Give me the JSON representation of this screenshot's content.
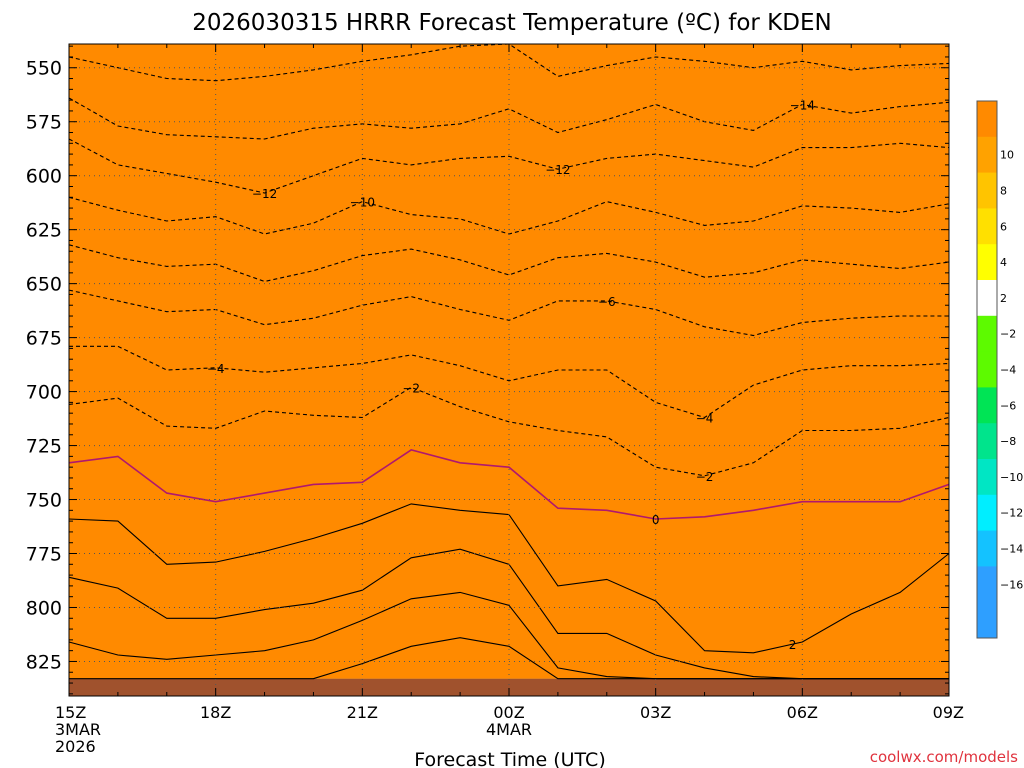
{
  "chart_data": {
    "type": "contour",
    "title": "2026030315 HRRR Forecast Temperature (ºC) for KDEN",
    "xlabel": "Forecast Time (UTC)",
    "ylabel": "",
    "credit": "coolwx.com/models",
    "x_range": [
      "2026-03-03 15Z",
      "2026-03-04 09Z"
    ],
    "x_ticks": [
      {
        "hour": 0,
        "lines": [
          "15Z",
          "3MAR",
          "2026"
        ]
      },
      {
        "hour": 3,
        "lines": [
          "18Z"
        ]
      },
      {
        "hour": 6,
        "lines": [
          "21Z"
        ]
      },
      {
        "hour": 9,
        "lines": [
          "00Z",
          "4MAR"
        ]
      },
      {
        "hour": 12,
        "lines": [
          "03Z"
        ]
      },
      {
        "hour": 15,
        "lines": [
          "06Z"
        ]
      },
      {
        "hour": 18,
        "lines": [
          "09Z"
        ]
      }
    ],
    "y_axis": {
      "title": "",
      "range": [
        841,
        539
      ],
      "ticks": [
        550,
        575,
        600,
        625,
        650,
        675,
        700,
        725,
        750,
        775,
        800,
        825
      ]
    },
    "grid": true,
    "hours": [
      0,
      1,
      2,
      3,
      4,
      5,
      6,
      7,
      8,
      9,
      10,
      11,
      12,
      13,
      14,
      15,
      16,
      17,
      18
    ],
    "ground_pressure": 833,
    "contours": [
      {
        "level": -16,
        "style": "dashed",
        "color": "#000000",
        "label": "",
        "label_hour": null,
        "p": [
          545,
          550,
          555,
          556,
          554,
          551,
          547,
          544,
          540,
          539,
          554,
          549,
          545,
          547,
          550,
          547,
          551,
          549,
          548
        ]
      },
      {
        "level": -14,
        "style": "dashed",
        "color": "#000000",
        "label": "−14",
        "label_hour": 15,
        "p": [
          564,
          577,
          581,
          582,
          583,
          578,
          576,
          578,
          576,
          569,
          580,
          574,
          567,
          575,
          579,
          567,
          571,
          568,
          566
        ]
      },
      {
        "level": -12,
        "style": "dashed",
        "color": "#000000",
        "label": "−12",
        "label_hour": 4,
        "label_hour_2": 10,
        "p": [
          583,
          595,
          599,
          603,
          608,
          600,
          592,
          595,
          592,
          591,
          597,
          592,
          590,
          593,
          596,
          587,
          587,
          585,
          587
        ]
      },
      {
        "level": -10,
        "style": "dashed",
        "color": "#000000",
        "label": "−10",
        "label_hour": 6,
        "p": [
          610,
          616,
          621,
          619,
          627,
          622,
          612,
          618,
          620,
          627,
          621,
          612,
          617,
          623,
          621,
          614,
          615,
          617,
          613
        ]
      },
      {
        "level": -8,
        "style": "dashed",
        "color": "#000000",
        "label": "",
        "label_hour": null,
        "p": [
          632,
          638,
          642,
          641,
          649,
          644,
          637,
          634,
          639,
          646,
          638,
          636,
          640,
          647,
          645,
          639,
          641,
          643,
          640
        ]
      },
      {
        "level": -6,
        "style": "dashed",
        "color": "#000000",
        "label": "−6",
        "label_hour": 11,
        "p": [
          653,
          658,
          663,
          662,
          669,
          666,
          660,
          656,
          662,
          667,
          658,
          658,
          662,
          670,
          674,
          668,
          666,
          665,
          665
        ]
      },
      {
        "level": -4,
        "style": "dashed",
        "color": "#000000",
        "label": "−4",
        "label_hour": 3,
        "label_hour_2": 13,
        "p": [
          679,
          679,
          690,
          689,
          691,
          689,
          687,
          683,
          688,
          695,
          690,
          690,
          705,
          712,
          697,
          690,
          688,
          688,
          687
        ]
      },
      {
        "level": -2,
        "style": "dashed",
        "color": "#000000",
        "label": "−2",
        "label_hour": 7,
        "label_hour_2": 13,
        "p": [
          706,
          703,
          716,
          717,
          709,
          711,
          712,
          698,
          707,
          714,
          718,
          721,
          735,
          739,
          733,
          718,
          718,
          717,
          712
        ]
      },
      {
        "level": 0,
        "style": "solid",
        "color": "#b0186e",
        "label": "0",
        "label_hour": 12,
        "p": [
          733,
          730,
          747,
          751,
          747,
          743,
          742,
          727,
          733,
          735,
          754,
          755,
          759,
          758,
          755,
          751,
          751,
          751,
          743
        ]
      },
      {
        "level": 2,
        "style": "solid",
        "color": "#000000",
        "label": "2",
        "label_hour": 14.8,
        "p": [
          759,
          760,
          780,
          779,
          774,
          768,
          761,
          752,
          755,
          757,
          790,
          787,
          797,
          820,
          821,
          816,
          803,
          793,
          775
        ]
      },
      {
        "level": 4,
        "style": "solid",
        "color": "#000000",
        "label": "",
        "label_hour": null,
        "p": [
          786,
          791,
          805,
          805,
          801,
          798,
          792,
          777,
          773,
          780,
          812,
          812,
          822,
          828,
          832,
          833,
          833,
          833,
          833
        ]
      },
      {
        "level": 6,
        "style": "solid",
        "color": "#000000",
        "label": "",
        "label_hour": null,
        "p": [
          816,
          822,
          824,
          822,
          820,
          815,
          806,
          796,
          793,
          799,
          828,
          832,
          833,
          833,
          833,
          833,
          833,
          833,
          833
        ]
      },
      {
        "level": 8,
        "style": "solid",
        "color": "#000000",
        "label": "",
        "label_hour": null,
        "p": [
          833,
          833,
          833,
          833,
          833,
          833,
          826,
          818,
          814,
          818,
          833,
          833,
          833,
          833,
          833,
          833,
          833,
          833,
          833
        ]
      }
    ],
    "fill_bands": [
      {
        "lower": -16,
        "upper": -14,
        "color": "#2e9fff"
      },
      {
        "lower": -14,
        "upper": -12,
        "color": "#14c2ff"
      },
      {
        "lower": -12,
        "upper": -10,
        "color": "#00eeff"
      },
      {
        "lower": -10,
        "upper": -8,
        "color": "#00e6c4"
      },
      {
        "lower": -8,
        "upper": -6,
        "color": "#00e48c"
      },
      {
        "lower": -6,
        "upper": -4,
        "color": "#00e455"
      },
      {
        "lower": -4,
        "upper": -2,
        "color": "#5dfa00"
      },
      {
        "lower": -2,
        "upper": 2,
        "color": "#ffffff"
      },
      {
        "lower": 2,
        "upper": 4,
        "color": "#ffff00"
      },
      {
        "lower": 4,
        "upper": 6,
        "color": "#ffe000"
      },
      {
        "lower": 6,
        "upper": 8,
        "color": "#ffc400"
      },
      {
        "lower": 8,
        "upper": 10,
        "color": "#ffa200"
      },
      {
        "lower": 10,
        "upper": 12,
        "color": "#ff8a00"
      }
    ],
    "colorbar": {
      "bins": [
        {
          "color": "#2e9fff",
          "label": ""
        },
        {
          "color": "#2e9fff",
          "label": "−16"
        },
        {
          "color": "#14c2ff",
          "label": "−14"
        },
        {
          "color": "#00eeff",
          "label": "−12"
        },
        {
          "color": "#00e6c4",
          "label": "−10"
        },
        {
          "color": "#00e48c",
          "label": "−8"
        },
        {
          "color": "#00e455",
          "label": "−6"
        },
        {
          "color": "#5dfa00",
          "label": "−4"
        },
        {
          "color": "#5dfa00",
          "label": "−2"
        },
        {
          "color": "#ffffff",
          "label": "2"
        },
        {
          "color": "#ffff00",
          "label": "4"
        },
        {
          "color": "#ffe000",
          "label": "6"
        },
        {
          "color": "#ffc400",
          "label": "8"
        },
        {
          "color": "#ffa200",
          "label": "10"
        },
        {
          "color": "#ff8a00",
          "label": ""
        }
      ]
    },
    "colors": {
      "ground": "#a0522d",
      "frame": "#000000",
      "grid": "#555555"
    }
  }
}
